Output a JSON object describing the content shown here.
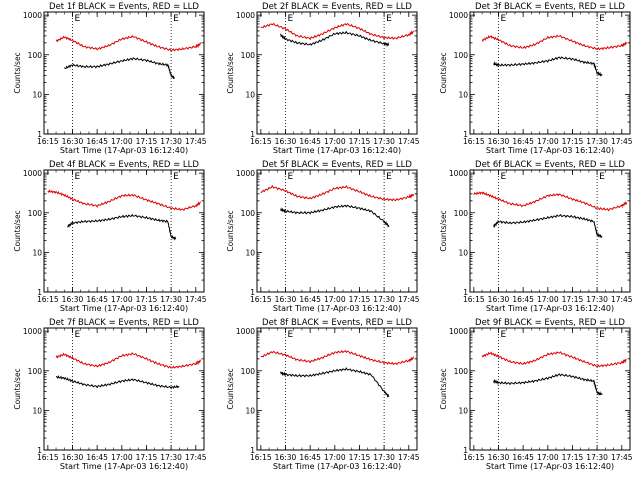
{
  "figure": {
    "xlabel": "Start Time (17-Apr-03 16:12:40)",
    "ylabel": "Counts/sec",
    "x_ticks": [
      "16:15",
      "16:30",
      "16:45",
      "17:00",
      "17:15",
      "17:30",
      "17:45"
    ],
    "y_ticks": [
      "1",
      "10",
      "100",
      "1000"
    ],
    "markers": [
      {
        "label": "E",
        "x": "16:30"
      },
      {
        "label": "E",
        "x": "17:30"
      }
    ],
    "colors": {
      "events": "#000000",
      "lld": "#dd0000",
      "axes": "#000000"
    }
  },
  "chart_data": [
    {
      "type": "line",
      "title": "Det 1f BLACK = Events, RED = LLD",
      "x_range": [
        "16:12:40",
        "17:50"
      ],
      "ylim": [
        1,
        1200
      ],
      "yscale": "log",
      "grid": false,
      "x": [
        "16:20",
        "16:25",
        "16:30",
        "16:37",
        "16:45",
        "16:52",
        "17:00",
        "17:07",
        "17:15",
        "17:22",
        "17:30",
        "17:37",
        "17:45",
        "17:48"
      ],
      "series": [
        {
          "name": "LLD",
          "color": "#dd0000",
          "values": [
            220,
            280,
            230,
            160,
            140,
            170,
            250,
            290,
            210,
            160,
            130,
            140,
            160,
            190
          ]
        },
        {
          "name": "Events",
          "color": "#000000",
          "x": [
            "16:25",
            "16:30",
            "16:37",
            "16:45",
            "16:52",
            "17:00",
            "17:07",
            "17:15",
            "17:22",
            "17:28",
            "17:30",
            "17:32"
          ],
          "values": [
            45,
            55,
            50,
            50,
            58,
            70,
            80,
            72,
            60,
            55,
            30,
            25
          ]
        }
      ]
    },
    {
      "type": "line",
      "title": "Det 2f BLACK = Events, RED = LLD",
      "x_range": [
        "16:12:40",
        "17:50"
      ],
      "ylim": [
        1,
        1200
      ],
      "yscale": "log",
      "grid": false,
      "x": [
        "16:15",
        "16:22",
        "16:30",
        "16:37",
        "16:45",
        "16:52",
        "17:00",
        "17:07",
        "17:15",
        "17:22",
        "17:30",
        "17:37",
        "17:45",
        "17:48"
      ],
      "series": [
        {
          "name": "LLD",
          "color": "#dd0000",
          "values": [
            480,
            600,
            450,
            300,
            260,
            330,
            480,
            600,
            460,
            330,
            270,
            260,
            320,
            380
          ]
        },
        {
          "name": "Events",
          "color": "#000000",
          "x": [
            "16:27",
            "16:30",
            "16:37",
            "16:45",
            "16:52",
            "17:00",
            "17:07",
            "17:15",
            "17:22",
            "17:30",
            "17:33"
          ],
          "values": [
            320,
            250,
            200,
            180,
            230,
            340,
            360,
            300,
            230,
            190,
            180
          ]
        }
      ]
    },
    {
      "type": "line",
      "title": "Det 3f BLACK = Events, RED = LLD",
      "x_range": [
        "16:12:40",
        "17:50"
      ],
      "ylim": [
        1,
        1200
      ],
      "yscale": "log",
      "grid": false,
      "x": [
        "16:20",
        "16:25",
        "16:30",
        "16:37",
        "16:45",
        "16:52",
        "17:00",
        "17:07",
        "17:15",
        "17:22",
        "17:30",
        "17:37",
        "17:45",
        "17:48"
      ],
      "series": [
        {
          "name": "LLD",
          "color": "#dd0000",
          "values": [
            230,
            290,
            240,
            170,
            150,
            180,
            270,
            300,
            220,
            170,
            140,
            150,
            170,
            200
          ]
        },
        {
          "name": "Events",
          "color": "#000000",
          "x": [
            "16:27",
            "16:30",
            "16:37",
            "16:45",
            "16:52",
            "17:00",
            "17:07",
            "17:15",
            "17:22",
            "17:28",
            "17:30",
            "17:33"
          ],
          "values": [
            60,
            55,
            55,
            58,
            62,
            70,
            85,
            78,
            65,
            60,
            35,
            30
          ]
        }
      ]
    },
    {
      "type": "line",
      "title": "Det 4f BLACK = Events, RED = LLD",
      "x_range": [
        "16:12:40",
        "17:50"
      ],
      "ylim": [
        1,
        1200
      ],
      "yscale": "log",
      "grid": false,
      "x": [
        "16:15",
        "16:20",
        "16:25",
        "16:30",
        "16:37",
        "16:45",
        "16:52",
        "17:00",
        "17:07",
        "17:15",
        "17:22",
        "17:30",
        "17:37",
        "17:45",
        "17:48"
      ],
      "series": [
        {
          "name": "LLD",
          "color": "#dd0000",
          "values": [
            350,
            330,
            280,
            220,
            170,
            150,
            190,
            270,
            280,
            210,
            170,
            130,
            120,
            150,
            180
          ]
        },
        {
          "name": "Events",
          "color": "#000000",
          "x": [
            "16:27",
            "16:30",
            "16:37",
            "16:45",
            "16:52",
            "17:00",
            "17:07",
            "17:15",
            "17:22",
            "17:28",
            "17:30",
            "17:33"
          ],
          "values": [
            45,
            55,
            60,
            62,
            68,
            80,
            85,
            75,
            65,
            60,
            25,
            22
          ]
        }
      ]
    },
    {
      "type": "line",
      "title": "Det 5f BLACK = Events, RED = LLD",
      "x_range": [
        "16:12:40",
        "17:50"
      ],
      "ylim": [
        1,
        1200
      ],
      "yscale": "log",
      "grid": false,
      "x": [
        "16:15",
        "16:22",
        "16:30",
        "16:37",
        "16:45",
        "16:52",
        "17:00",
        "17:07",
        "17:15",
        "17:22",
        "17:30",
        "17:37",
        "17:45",
        "17:48"
      ],
      "series": [
        {
          "name": "LLD",
          "color": "#dd0000",
          "values": [
            330,
            450,
            360,
            260,
            230,
            290,
            410,
            450,
            340,
            260,
            220,
            210,
            250,
            290
          ]
        },
        {
          "name": "Events",
          "color": "#000000",
          "x": [
            "16:27",
            "16:30",
            "16:37",
            "16:45",
            "16:52",
            "17:00",
            "17:07",
            "17:15",
            "17:22",
            "17:30",
            "17:33"
          ],
          "values": [
            120,
            110,
            100,
            100,
            115,
            140,
            150,
            130,
            110,
            60,
            45
          ]
        }
      ]
    },
    {
      "type": "line",
      "title": "Det 6f BLACK = Events, RED = LLD",
      "x_range": [
        "16:12:40",
        "17:50"
      ],
      "ylim": [
        1,
        1200
      ],
      "yscale": "log",
      "grid": false,
      "x": [
        "16:15",
        "16:20",
        "16:25",
        "16:30",
        "16:37",
        "16:45",
        "16:52",
        "17:00",
        "17:07",
        "17:15",
        "17:22",
        "17:30",
        "17:37",
        "17:45",
        "17:48"
      ],
      "series": [
        {
          "name": "LLD",
          "color": "#dd0000",
          "values": [
            300,
            320,
            270,
            220,
            170,
            150,
            190,
            270,
            290,
            220,
            180,
            130,
            120,
            150,
            180
          ]
        },
        {
          "name": "Events",
          "color": "#000000",
          "x": [
            "16:27",
            "16:30",
            "16:37",
            "16:45",
            "16:52",
            "17:00",
            "17:07",
            "17:15",
            "17:22",
            "17:28",
            "17:30",
            "17:33"
          ],
          "values": [
            45,
            60,
            55,
            58,
            65,
            75,
            85,
            80,
            70,
            60,
            28,
            25
          ]
        }
      ]
    },
    {
      "type": "line",
      "title": "Det 7f BLACK = Events, RED = LLD",
      "x_range": [
        "16:12:40",
        "17:50"
      ],
      "ylim": [
        1,
        1200
      ],
      "yscale": "log",
      "grid": false,
      "x": [
        "16:20",
        "16:25",
        "16:30",
        "16:37",
        "16:45",
        "16:52",
        "17:00",
        "17:07",
        "17:15",
        "17:22",
        "17:30",
        "17:37",
        "17:45",
        "17:48"
      ],
      "series": [
        {
          "name": "LLD",
          "color": "#dd0000",
          "values": [
            220,
            260,
            210,
            150,
            130,
            160,
            240,
            270,
            200,
            150,
            120,
            130,
            150,
            180
          ]
        },
        {
          "name": "Events",
          "color": "#000000",
          "x": [
            "16:20",
            "16:25",
            "16:30",
            "16:37",
            "16:45",
            "16:52",
            "17:00",
            "17:07",
            "17:15",
            "17:22",
            "17:30",
            "17:35"
          ],
          "values": [
            70,
            65,
            55,
            45,
            40,
            45,
            55,
            60,
            50,
            42,
            38,
            40
          ]
        }
      ]
    },
    {
      "type": "line",
      "title": "Det 8f BLACK = Events, RED = LLD",
      "x_range": [
        "16:12:40",
        "17:50"
      ],
      "ylim": [
        1,
        1200
      ],
      "yscale": "log",
      "grid": false,
      "x": [
        "16:15",
        "16:22",
        "16:30",
        "16:37",
        "16:45",
        "16:52",
        "17:00",
        "17:07",
        "17:15",
        "17:22",
        "17:30",
        "17:37",
        "17:45",
        "17:48"
      ],
      "series": [
        {
          "name": "LLD",
          "color": "#dd0000",
          "values": [
            220,
            300,
            250,
            190,
            170,
            210,
            290,
            310,
            240,
            190,
            160,
            150,
            180,
            210
          ]
        },
        {
          "name": "Events",
          "color": "#000000",
          "x": [
            "16:27",
            "16:30",
            "16:37",
            "16:45",
            "16:52",
            "17:00",
            "17:07",
            "17:15",
            "17:22",
            "17:30",
            "17:33"
          ],
          "values": [
            90,
            80,
            75,
            75,
            85,
            100,
            110,
            95,
            80,
            30,
            22
          ]
        }
      ]
    },
    {
      "type": "line",
      "title": "Det 9f BLACK = Events, RED = LLD",
      "x_range": [
        "16:12:40",
        "17:50"
      ],
      "ylim": [
        1,
        1200
      ],
      "yscale": "log",
      "grid": false,
      "x": [
        "16:20",
        "16:25",
        "16:30",
        "16:37",
        "16:45",
        "16:52",
        "17:00",
        "17:07",
        "17:15",
        "17:22",
        "17:30",
        "17:37",
        "17:45",
        "17:48"
      ],
      "series": [
        {
          "name": "LLD",
          "color": "#dd0000",
          "values": [
            230,
            280,
            230,
            170,
            150,
            180,
            260,
            290,
            220,
            170,
            130,
            140,
            160,
            190
          ]
        },
        {
          "name": "Events",
          "color": "#000000",
          "x": [
            "16:27",
            "16:30",
            "16:37",
            "16:45",
            "16:52",
            "17:00",
            "17:07",
            "17:15",
            "17:22",
            "17:28",
            "17:30",
            "17:33"
          ],
          "values": [
            55,
            50,
            48,
            50,
            55,
            65,
            80,
            72,
            60,
            55,
            28,
            25
          ]
        }
      ]
    }
  ]
}
